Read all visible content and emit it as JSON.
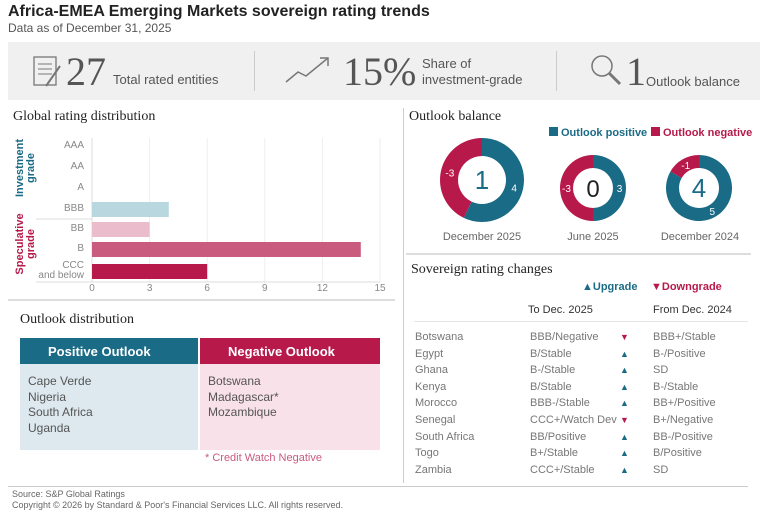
{
  "title": "Africa-EMEA Emerging Markets sovereign rating trends",
  "subtitle": "Data as of December 31, 2025",
  "kpis": [
    {
      "icon": "document-icon",
      "value": "27",
      "label": "Total rated entities"
    },
    {
      "icon": "trend-up-icon",
      "value": "15%",
      "label_line1": "Share of",
      "label_line2": "investment-grade"
    },
    {
      "icon": "magnifier-icon",
      "value": "1",
      "label": "Outlook balance"
    }
  ],
  "colors": {
    "teal": "#1a6b86",
    "crimson": "#b8194b",
    "light_blue": "#b9d7df",
    "pink": "#ebbccb",
    "rose": "#c95b7e"
  },
  "chart_data": [
    {
      "type": "bar",
      "title": "Global rating distribution",
      "orientation": "horizontal",
      "categories": [
        "AAA",
        "AA",
        "A",
        "BBB",
        "BB",
        "B",
        "CCC and below"
      ],
      "category_lines": [
        [
          "AAA"
        ],
        [
          "AA"
        ],
        [
          "A"
        ],
        [
          "BBB"
        ],
        [
          "BB"
        ],
        [
          "B"
        ],
        [
          "CCC",
          "and below"
        ]
      ],
      "values": [
        0,
        0,
        0,
        4,
        3,
        14,
        6
      ],
      "groups": [
        {
          "name_line1": "Investment",
          "name_line2": "grade",
          "categories": [
            "AAA",
            "AA",
            "A",
            "BBB"
          ]
        },
        {
          "name_line1": "Speculative",
          "name_line2": "grade",
          "categories": [
            "BB",
            "B",
            "CCC and below"
          ]
        }
      ],
      "xlim": [
        0,
        15
      ],
      "xticks": [
        "0",
        "3",
        "6",
        "9",
        "12",
        "15"
      ]
    },
    {
      "type": "pie",
      "title": "Outlook balance",
      "legend": [
        "Outlook positive",
        "Outlook negative"
      ],
      "legend_position": "top-right",
      "donuts": [
        {
          "label": "December 2025",
          "positive": 4,
          "negative": -3,
          "balance": "1",
          "pos_text": "4",
          "neg_text": "-3"
        },
        {
          "label": "June 2025",
          "positive": 3,
          "negative": -3,
          "balance": "0",
          "pos_text": "3",
          "neg_text": "-3"
        },
        {
          "label": "December 2024",
          "positive": 5,
          "negative": -1,
          "balance": "4",
          "pos_text": "5",
          "neg_text": "-1"
        }
      ]
    }
  ],
  "outlook_distribution": {
    "title": "Outlook distribution",
    "positive_header": "Positive Outlook",
    "negative_header": "Negative Outlook",
    "positive": [
      "Cape Verde",
      "Nigeria",
      "South Africa",
      "Uganda"
    ],
    "negative": [
      "Botswana",
      "Madagascar*",
      "Mozambique"
    ],
    "footnote": "* Credit Watch Negative"
  },
  "rating_changes": {
    "title": "Sovereign rating  changes",
    "legend_up": "Upgrade",
    "legend_down": "Downgrade",
    "col_to": "To Dec. 2025",
    "col_from": "From Dec. 2024",
    "rows": [
      {
        "country": "Botswana",
        "to": "BBB/Negative",
        "dir": "down",
        "from": "BBB+/Stable"
      },
      {
        "country": "Egypt",
        "to": "B/Stable",
        "dir": "up",
        "from": "B-/Positive"
      },
      {
        "country": "Ghana",
        "to": "B-/Stable",
        "dir": "up",
        "from": "SD"
      },
      {
        "country": "Kenya",
        "to": "B/Stable",
        "dir": "up",
        "from": "B-/Stable"
      },
      {
        "country": "Morocco",
        "to": "BBB-/Stable",
        "dir": "up",
        "from": "BB+/Positive"
      },
      {
        "country": "Senegal",
        "to": "CCC+/Watch Dev",
        "dir": "down",
        "from": "B+/Negative"
      },
      {
        "country": "South Africa",
        "to": "BB/Positive",
        "dir": "up",
        "from": "BB-/Positive"
      },
      {
        "country": "Togo",
        "to": "B+/Stable",
        "dir": "up",
        "from": "B/Positive"
      },
      {
        "country": "Zambia",
        "to": "CCC+/Stable",
        "dir": "up",
        "from": "SD"
      }
    ]
  },
  "footer": {
    "source": "Source: S&P Global Ratings",
    "copyright": "Copyright © 2026 by Standard & Poor's Financial Services LLC. All rights reserved."
  }
}
